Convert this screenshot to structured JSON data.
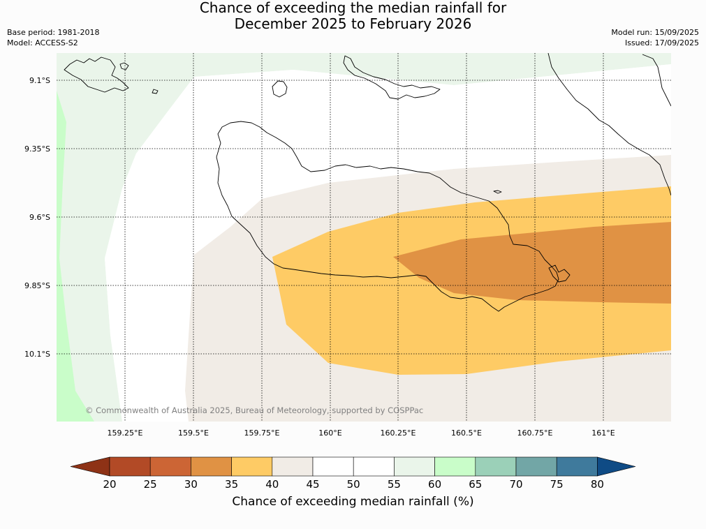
{
  "title": {
    "line1": "Chance of exceeding the median rainfall for",
    "line2": "December 2025 to February 2026"
  },
  "meta_left": {
    "base_period": "Base period: 1981-2018",
    "model": "Model: ACCESS-S2"
  },
  "meta_right": {
    "model_run": "Model run: 15/09/2025",
    "issued": "Issued: 17/09/2025"
  },
  "axes": {
    "lat_labels": [
      "9.1°S",
      "9.35°S",
      "9.6°S",
      "9.85°S",
      "10.1°S"
    ],
    "lon_labels": [
      "159.25°E",
      "159.5°E",
      "159.75°E",
      "160°E",
      "160.25°E",
      "160.5°E",
      "160.75°E",
      "161°E"
    ]
  },
  "copyright": "© Commonwealth of Australia 2025, Bureau of Meteorology, supported by COSPPac",
  "colorbar": {
    "title": "Chance of exceeding median rainfall (%)",
    "ticks": [
      "20",
      "25",
      "30",
      "35",
      "40",
      "45",
      "50",
      "55",
      "60",
      "65",
      "70",
      "75",
      "80"
    ],
    "colors": [
      "#8e3216",
      "#b24a26",
      "#cc6535",
      "#e09244",
      "#fecb65",
      "#f1ece6",
      "#ffffff",
      "#ffffff",
      "#eaf5ea",
      "#c9fdc9",
      "#9bd0b8",
      "#72a6a6",
      "#3f7a9c",
      "#0f4b85"
    ],
    "left_extend_color": "#8e3216",
    "right_extend_color": "#0f4b85"
  },
  "map_colors": {
    "band_55_60": "#eaf5ea",
    "band_60_65": "#c9fdc9",
    "band_40_45": "#f1ece6",
    "band_35_40": "#fecb65",
    "band_30_35": "#e09244",
    "coastline": "#000000"
  }
}
